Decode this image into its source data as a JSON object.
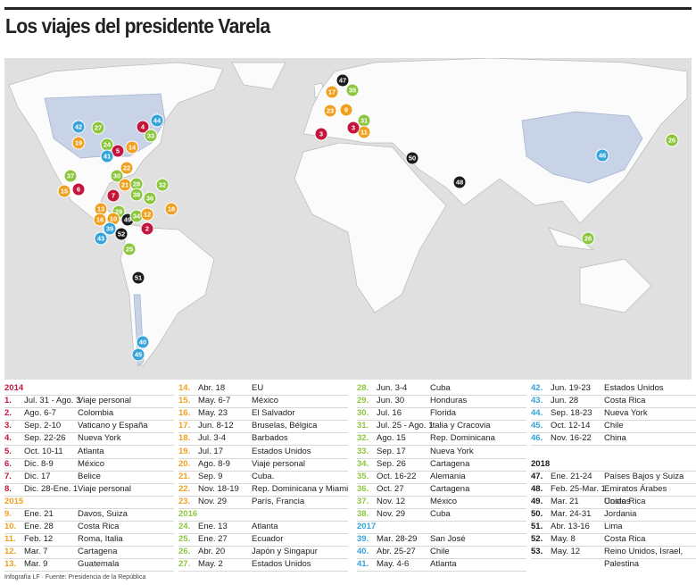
{
  "header": {
    "title": "Los viajes del presidente Varela"
  },
  "map_markers": [
    {
      "label": "47",
      "color": "#1a1a1a"
    },
    {
      "label": "17",
      "color": "#f0a020"
    },
    {
      "label": "35",
      "color": "#8cc63e"
    },
    {
      "label": "23",
      "color": "#f0a020"
    },
    {
      "label": "9",
      "color": "#f0a020"
    },
    {
      "label": "31",
      "color": "#8cc63e"
    },
    {
      "label": "11",
      "color": "#f0a020"
    },
    {
      "label": "3",
      "color": "#c3163c"
    },
    {
      "label": "3",
      "color": "#c3163c"
    },
    {
      "label": "50",
      "color": "#1a1a1a"
    },
    {
      "label": "48",
      "color": "#1a1a1a"
    },
    {
      "label": "46",
      "color": "#36a3d9"
    },
    {
      "label": "26",
      "color": "#8cc63e"
    },
    {
      "label": "26",
      "color": "#8cc63e"
    },
    {
      "label": "42",
      "color": "#36a3d9"
    },
    {
      "label": "27",
      "color": "#8cc63e"
    },
    {
      "label": "4",
      "color": "#c3163c"
    },
    {
      "label": "44",
      "color": "#36a3d9"
    },
    {
      "label": "33",
      "color": "#8cc63e"
    },
    {
      "label": "19",
      "color": "#f0a020"
    },
    {
      "label": "24",
      "color": "#8cc63e"
    },
    {
      "label": "5",
      "color": "#c3163c"
    },
    {
      "label": "14",
      "color": "#f0a020"
    },
    {
      "label": "41",
      "color": "#36a3d9"
    },
    {
      "label": "22",
      "color": "#f0a020"
    },
    {
      "label": "30",
      "color": "#8cc63e"
    },
    {
      "label": "37",
      "color": "#8cc63e"
    },
    {
      "label": "15",
      "color": "#f0a020"
    },
    {
      "label": "6",
      "color": "#c3163c"
    },
    {
      "label": "21",
      "color": "#f0a020"
    },
    {
      "label": "28",
      "color": "#8cc63e"
    },
    {
      "label": "7",
      "color": "#c3163c"
    },
    {
      "label": "38",
      "color": "#8cc63e"
    },
    {
      "label": "32",
      "color": "#8cc63e"
    },
    {
      "label": "18",
      "color": "#f0a020"
    },
    {
      "label": "13",
      "color": "#f0a020"
    },
    {
      "label": "29",
      "color": "#8cc63e"
    },
    {
      "label": "16",
      "color": "#f0a020"
    },
    {
      "label": "10",
      "color": "#f0a020"
    },
    {
      "label": "49",
      "color": "#1a1a1a"
    },
    {
      "label": "34",
      "color": "#8cc63e"
    },
    {
      "label": "12",
      "color": "#f0a020"
    },
    {
      "label": "39",
      "color": "#36a3d9"
    },
    {
      "label": "52",
      "color": "#1a1a1a"
    },
    {
      "label": "43",
      "color": "#36a3d9"
    },
    {
      "label": "2",
      "color": "#c3163c"
    },
    {
      "label": "25",
      "color": "#8cc63e"
    },
    {
      "label": "51",
      "color": "#1a1a1a"
    },
    {
      "label": "40",
      "color": "#36a3d9"
    },
    {
      "label": "45",
      "color": "#36a3d9"
    },
    {
      "label": "36",
      "color": "#8cc63e"
    }
  ],
  "table": {
    "columns": [
      [
        {
          "year": "2014",
          "color": "#c3163c"
        },
        {
          "number": "1.",
          "dates": "Jul. 31 - Ago. 3",
          "place": "Viaje personal"
        },
        {
          "number": "2.",
          "dates": "Ago. 6-7",
          "place": "Colombia"
        },
        {
          "number": "3.",
          "dates": "Sep. 2-10",
          "place": "Vaticano y España"
        },
        {
          "number": "4.",
          "dates": "Sep. 22-26",
          "place": "Nueva York"
        },
        {
          "number": "5.",
          "dates": "Oct. 10-11",
          "place": "Atlanta"
        },
        {
          "number": "6.",
          "dates": "Dic. 8-9",
          "place": "México"
        },
        {
          "number": "7.",
          "dates": "Dic. 17",
          "place": "Belice"
        },
        {
          "number": "8.",
          "dates": "Dic. 28-Ene. 1",
          "place": "Viaje personal"
        },
        {
          "year": "2015",
          "color": "#f0a020"
        },
        {
          "number": "9.",
          "dates": "Ene. 21",
          "place": "Davos, Suiza"
        },
        {
          "number": "10.",
          "dates": "Ene. 28",
          "place": "Costa Rica"
        },
        {
          "number": "11.",
          "dates": "Feb. 12",
          "place": "Roma, Italia"
        },
        {
          "number": "12.",
          "dates": "Mar. 7",
          "place": "Cartagena"
        },
        {
          "number": "13.",
          "dates": "Mar. 9",
          "place": "Guatemala"
        }
      ],
      [
        {
          "number": "14.",
          "dates": "Abr. 18",
          "place": "EU"
        },
        {
          "number": "15.",
          "dates": "May. 6-7",
          "place": "México"
        },
        {
          "number": "16.",
          "dates": "May. 23",
          "place": "El Salvador"
        },
        {
          "number": "17.",
          "dates": "Jun. 8-12",
          "place": "Bruselas, Bélgica"
        },
        {
          "number": "18.",
          "dates": "Jul. 3-4",
          "place": "Barbados"
        },
        {
          "number": "19.",
          "dates": "Jul. 17",
          "place": "Estados Unidos"
        },
        {
          "number": "20.",
          "dates": "Ago. 8-9",
          "place": "Viaje personal"
        },
        {
          "number": "21.",
          "dates": "Sep. 9",
          "place": "Cuba."
        },
        {
          "number": "22.",
          "dates": "Nov. 18-19",
          "place": "Rep. Dominicana y Miami"
        },
        {
          "number": "23.",
          "dates": "Nov. 29",
          "place": "París, Francia"
        },
        {
          "year": "2016",
          "color": "#8cc63e"
        },
        {
          "number": "24.",
          "dates": "Ene. 13",
          "place": "Atlanta"
        },
        {
          "number": "25.",
          "dates": "Ene. 27",
          "place": "Ecuador"
        },
        {
          "number": "26.",
          "dates": "Abr. 20",
          "place": "Japón y Singapur"
        },
        {
          "number": "27.",
          "dates": "May. 2",
          "place": "Estados Unidos"
        }
      ],
      [
        {
          "number": "28.",
          "dates": "Jun. 3-4",
          "place": "Cuba"
        },
        {
          "number": "29.",
          "dates": "Jun. 30",
          "place": "Honduras"
        },
        {
          "number": "30.",
          "dates": "Jul. 16",
          "place": "Florida"
        },
        {
          "number": "31.",
          "dates": "Jul. 25 - Ago. 1",
          "place": "Italia y Cracovia"
        },
        {
          "number": "32.",
          "dates": "Ago. 15",
          "place": "Rep. Dominicana"
        },
        {
          "number": "33.",
          "dates": "Sep. 17",
          "place": "Nueva York"
        },
        {
          "number": "34.",
          "dates": "Sep. 26",
          "place": "Cartagena"
        },
        {
          "number": "35.",
          "dates": "Oct. 16-22",
          "place": "Alemania"
        },
        {
          "number": "36.",
          "dates": "Oct. 27",
          "place": "Cartagena"
        },
        {
          "number": "37.",
          "dates": "Nov. 12",
          "place": "México"
        },
        {
          "number": "38.",
          "dates": "Nov. 29",
          "place": "Cuba"
        },
        {
          "year": "2017",
          "color": "#36a3d9"
        },
        {
          "number": "39.",
          "dates": "Mar. 28-29",
          "place": "San José"
        },
        {
          "number": "40.",
          "dates": "Abr. 25-27",
          "place": "Chile"
        },
        {
          "number": "41.",
          "dates": "May. 4-6",
          "place": "Atlanta"
        }
      ],
      [
        {
          "number": "42.",
          "dates": "Jun. 19-23",
          "place": "Estados Unidos"
        },
        {
          "number": "43.",
          "dates": "Jun. 28",
          "place": "Costa Rica"
        },
        {
          "number": "44.",
          "dates": "Sep. 18-23",
          "place": "Nueva York"
        },
        {
          "number": "45.",
          "dates": "Oct. 12-14",
          "place": "Chile"
        },
        {
          "number": "46.",
          "dates": "Nov. 16-22",
          "place": "China"
        },
        {
          "year": "2018",
          "color": "#1a1a1a"
        },
        {
          "number": "47.",
          "dates": "Ene. 21-24",
          "place": "Países Bajos y Suiza"
        },
        {
          "number": "48.",
          "dates": "Feb. 25-Mar. 1",
          "place": "Emiratos Árabes Unidos"
        },
        {
          "number": "49.",
          "dates": "Mar. 21",
          "place": "Costa Rica"
        },
        {
          "number": "50.",
          "dates": "Mar. 24-31",
          "place": "Jordania"
        },
        {
          "number": "51.",
          "dates": "Abr. 13-16",
          "place": "Lima"
        },
        {
          "number": "52.",
          "dates": "May. 8",
          "place": "Costa Rica"
        },
        {
          "number": "53.",
          "dates": "May. 12",
          "place": "Reino Unidos, Israel, Palestina"
        }
      ]
    ]
  },
  "footer": {
    "source": "Infografía LF · Fuente: Presidencia de la República"
  }
}
